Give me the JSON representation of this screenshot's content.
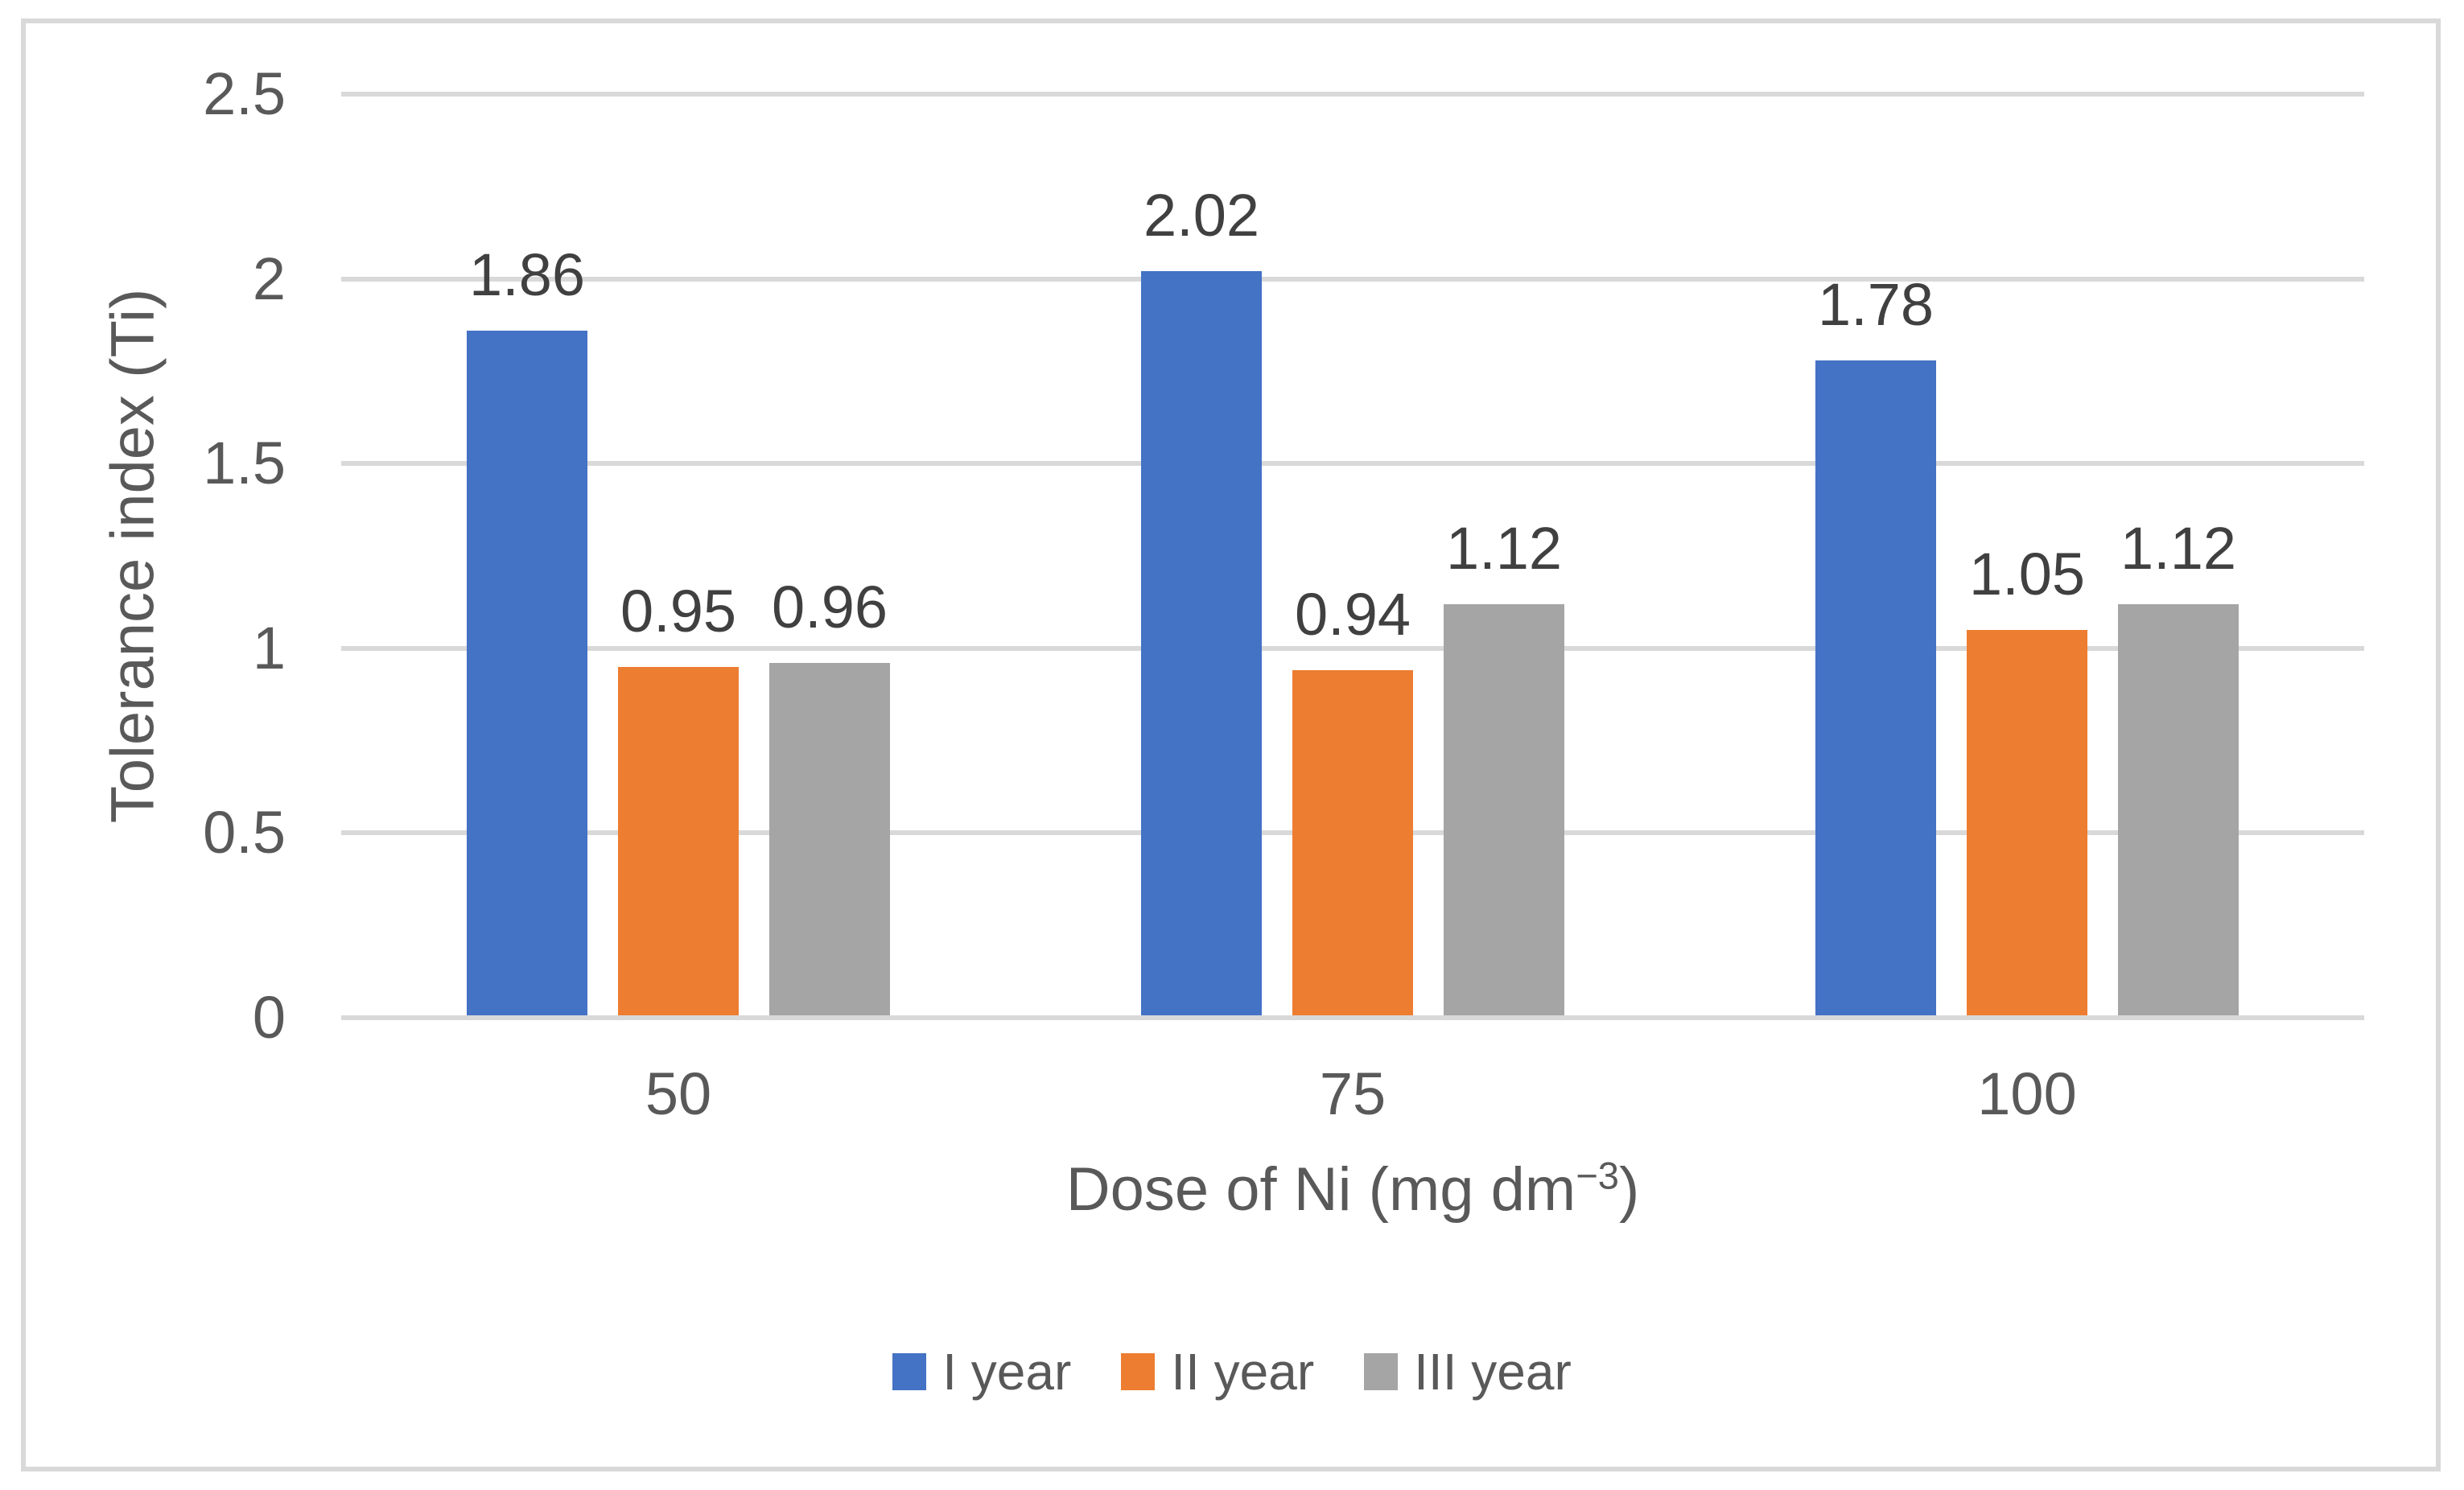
{
  "chart_data": {
    "type": "bar",
    "categories": [
      "50",
      "75",
      "100"
    ],
    "series": [
      {
        "name": "I year",
        "color": "#4472C4",
        "values": [
          1.86,
          2.02,
          1.78
        ]
      },
      {
        "name": "II year",
        "color": "#ED7D31",
        "values": [
          0.95,
          0.94,
          1.05
        ]
      },
      {
        "name": "III year",
        "color": "#A5A5A5",
        "values": [
          0.96,
          1.12,
          1.12
        ]
      }
    ],
    "data_labels": [
      "1.86",
      "0.95",
      "0.96",
      "2.02",
      "0.94",
      "1.12",
      "1.78",
      "1.05",
      "1.12"
    ],
    "title": "",
    "ylabel": "Tolerance index (Ti)",
    "xlabel": {
      "prefix": "Dose of Ni (mg dm",
      "sup": "−3",
      "suffix": ")"
    },
    "ylim": [
      0,
      2.5
    ],
    "ytick_step": 0.5,
    "yticks": [
      "2.5",
      "2",
      "1.5",
      "1",
      "0.5",
      "0"
    ],
    "grid": true,
    "legend_position": "bottom",
    "colors": {
      "gridline": "#D9D9D9",
      "frame_border": "#D9D9D9",
      "axis_text": "#595959",
      "data_label_text": "#404040",
      "background": "#ffffff"
    }
  }
}
